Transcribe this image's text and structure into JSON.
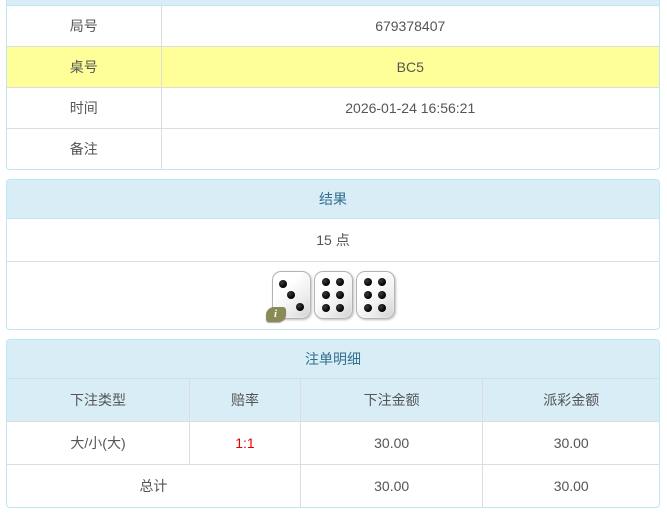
{
  "info_table": {
    "rows": [
      {
        "label": "局号",
        "value": "679378407",
        "highlight": false
      },
      {
        "label": "桌号",
        "value": "BC5",
        "highlight": true
      },
      {
        "label": "时间",
        "value": "2026-01-24 16:56:21",
        "highlight": false
      },
      {
        "label": "备注",
        "value": "",
        "highlight": false
      }
    ]
  },
  "result_panel": {
    "title": "结果",
    "points": "15 点",
    "dice": [
      3,
      6,
      6
    ],
    "info_icon": "i"
  },
  "bets_panel": {
    "title": "注单明细",
    "columns": [
      "下注类型",
      "赔率",
      "下注金额",
      "派彩金额"
    ],
    "rows": [
      {
        "type": "大/小(大)",
        "odds": "1:1",
        "bet": "30.00",
        "payout": "30.00"
      }
    ],
    "total": {
      "label": "总计",
      "bet": "30.00",
      "payout": "30.00"
    }
  },
  "colors": {
    "panel_border": "#bce8f1",
    "header_bg": "#d9edf7",
    "header_text": "#31708f",
    "highlight_row": "#ffff99",
    "row_divider": "#dddddd",
    "text": "#555555",
    "odds_red": "#ee0000",
    "badge_olive": "#8a8a55"
  }
}
